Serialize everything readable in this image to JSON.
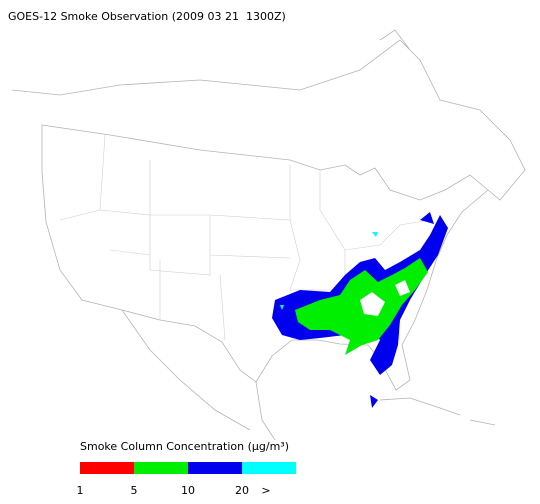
{
  "header": {
    "title": "GOES-12 Smoke Observation (2009 03 21  1300Z)"
  },
  "legend": {
    "title": "Smoke Column Concentration (μg/m³)",
    "colors": [
      "#ff0000",
      "#00ee00",
      "#0000ee",
      "#00ffff"
    ],
    "ticks": [
      1,
      5,
      10,
      20
    ],
    "overflow_label": ">"
  }
}
